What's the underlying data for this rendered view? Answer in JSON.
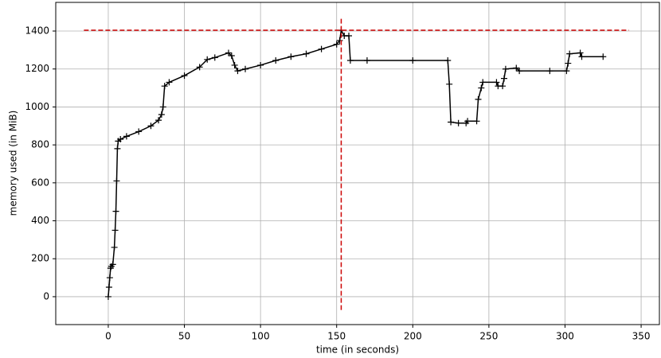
{
  "chart_data": {
    "type": "line",
    "x_label": "time (in seconds)",
    "y_label": "memory used (in MiB)",
    "x": [
      0,
      0.5,
      1,
      1.5,
      2,
      3,
      4,
      4.5,
      5,
      5.5,
      6,
      6.5,
      8,
      12,
      20,
      28,
      33,
      35,
      36,
      37,
      40,
      50,
      60,
      65,
      70,
      79,
      81,
      83,
      85,
      90,
      100,
      110,
      120,
      130,
      140,
      150,
      152,
      153,
      155,
      158,
      159,
      170,
      200,
      223,
      224,
      225,
      230,
      235,
      236,
      242,
      243,
      245,
      246,
      255,
      256,
      259,
      260,
      261,
      268,
      270,
      290,
      301,
      302,
      303,
      310,
      311,
      325
    ],
    "series": [
      {
        "name": "memory",
        "color": "#000000",
        "values": [
          0,
          50,
          100,
          150,
          160,
          170,
          260,
          350,
          450,
          610,
          780,
          820,
          830,
          845,
          870,
          900,
          930,
          960,
          1000,
          1110,
          1130,
          1165,
          1210,
          1250,
          1260,
          1285,
          1270,
          1220,
          1190,
          1200,
          1220,
          1245,
          1265,
          1280,
          1305,
          1330,
          1350,
          1404,
          1375,
          1375,
          1245,
          1245,
          1245,
          1245,
          1120,
          920,
          915,
          915,
          925,
          925,
          1040,
          1100,
          1130,
          1130,
          1110,
          1110,
          1150,
          1200,
          1205,
          1190,
          1190,
          1190,
          1230,
          1280,
          1285,
          1265,
          1265
        ]
      }
    ],
    "hline": {
      "y": 1404,
      "xmin": -16,
      "xmax": 342,
      "color": "#cc0000"
    },
    "vline": {
      "x": 153,
      "ymin": -70,
      "ymax": 1470,
      "color": "#cc0000"
    },
    "xlim": [
      -34.5,
      362
    ],
    "ylim": [
      -147,
      1551
    ],
    "xticks": [
      0,
      50,
      100,
      150,
      200,
      250,
      300,
      350
    ],
    "yticks": [
      0,
      200,
      400,
      600,
      800,
      1000,
      1200,
      1400
    ],
    "grid": true
  }
}
